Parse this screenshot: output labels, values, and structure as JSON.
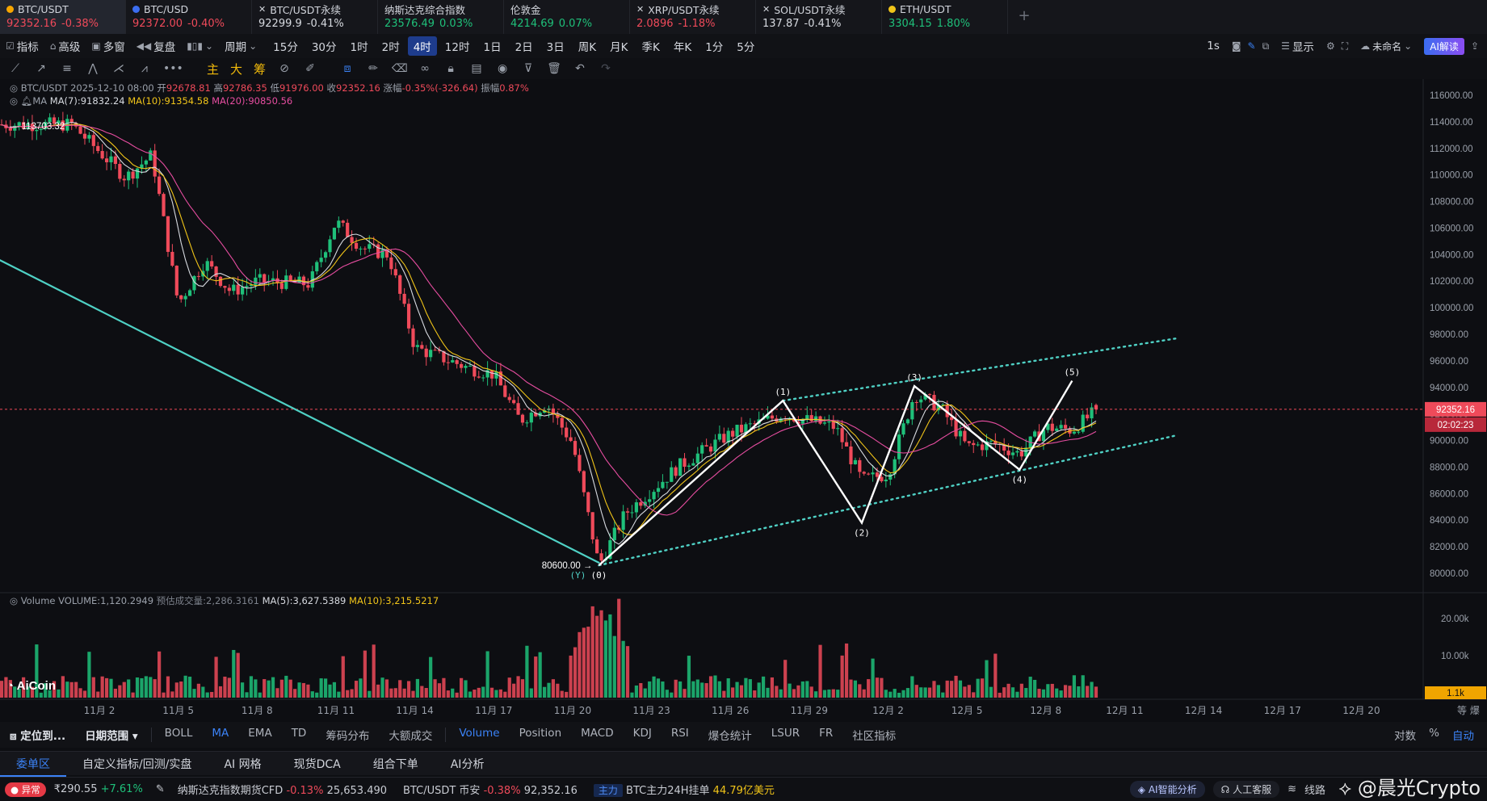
{
  "tickers": [
    {
      "name": "BTC/USDT",
      "price": "92352.16",
      "change": "-0.38%",
      "dir": "down",
      "icon": "btc-coin-icon",
      "dot": "#f7a600",
      "active": true
    },
    {
      "name": "BTC/USD",
      "price": "92372.00",
      "change": "-0.40%",
      "dir": "down",
      "icon": "coinbase-icon",
      "dot": "#3b6df0",
      "active": false
    },
    {
      "name": "BTC/USDT永续",
      "price": "92299.9",
      "change": "-0.41%",
      "dir": "white",
      "icon": "okx-icon",
      "dot": "",
      "active": false
    },
    {
      "name": "纳斯达克综合指数",
      "price": "23576.49",
      "change": "0.03%",
      "dir": "up",
      "icon": "",
      "dot": "",
      "active": false
    },
    {
      "name": "伦敦金",
      "price": "4214.69",
      "change": "0.07%",
      "dir": "up",
      "icon": "",
      "dot": "",
      "active": false
    },
    {
      "name": "XRP/USDT永续",
      "price": "2.0896",
      "change": "-1.18%",
      "dir": "down",
      "icon": "okx-icon",
      "dot": "",
      "active": false
    },
    {
      "name": "SOL/USDT永续",
      "price": "137.87",
      "change": "-0.41%",
      "dir": "white",
      "icon": "okx-icon",
      "dot": "",
      "active": false
    },
    {
      "name": "ETH/USDT",
      "price": "3304.15",
      "change": "1.80%",
      "dir": "up",
      "icon": "eth-coin-icon",
      "dot": "#f0c419",
      "active": false
    }
  ],
  "toolbar": {
    "left": [
      "指标",
      "高级",
      "多窗",
      "复盘"
    ],
    "period_label": "周期",
    "periods": [
      "15分",
      "30分",
      "1时",
      "2时",
      "4时",
      "12时",
      "1日",
      "2日",
      "3日",
      "周K",
      "月K",
      "季K",
      "年K",
      "1分",
      "5分"
    ],
    "selected_period": "4时",
    "right": {
      "interval": "1s",
      "display": "显示",
      "unnamed": "未命名",
      "ai": "AI解读"
    }
  },
  "drawbar": {
    "main_ind": [
      "主",
      "大",
      "筹"
    ]
  },
  "info": {
    "symbol": "BTC/USDT",
    "date": "2025-12-10 08:00",
    "open_label": "开",
    "open": "92678.81",
    "high_label": "高",
    "high": "92786.35",
    "low_label": "低",
    "low": "91976.00",
    "close_label": "收",
    "close": "92352.16",
    "chg_label": "涨幅",
    "chg": "-0.35%(-326.64)",
    "amp_label": "振幅",
    "amp": "0.87%",
    "ma_label": "MA",
    "ma7": "MA(7):91832.24",
    "ma10": "MA(10):91354.58",
    "ma20": "MA(20):90850.56",
    "vol_label": "Volume",
    "vol": "VOLUME:1,120.2949",
    "vol_est_label": "预估成交量:",
    "vol_est": "2,286.3161",
    "vma5": "MA(5):3,627.5389",
    "vma10": "MA(10):3,215.5217"
  },
  "chart_data": {
    "type": "candlestick",
    "interval": "4时",
    "price_axis": {
      "min": 80000,
      "max": 116000,
      "step": 2000,
      "labels": [
        "116000.00",
        "114000.00",
        "112000.00",
        "110000.00",
        "108000.00",
        "106000.00",
        "104000.00",
        "102000.00",
        "100000.00",
        "98000.00",
        "96000.00",
        "94000.00",
        "92000.00",
        "90000.00",
        "88000.00",
        "86000.00",
        "84000.00",
        "82000.00",
        "80000.00"
      ]
    },
    "volume_axis": {
      "labels": [
        "20.00k",
        "10.00k"
      ]
    },
    "x_labels": [
      "11月 2",
      "11月 5",
      "11月 8",
      "11月 11",
      "11月 14",
      "11月 17",
      "11月 20",
      "11月 23",
      "11月 26",
      "11月 29",
      "12月 2",
      "12月 5",
      "12月 8",
      "12月 11",
      "12月 14",
      "12月 17",
      "12月 20"
    ],
    "price_path_start": {
      "label": "11月 1",
      "value": 113800
    },
    "price_path": [
      {
        "x": "11月 1",
        "y": 113703
      },
      {
        "x": "11月 3",
        "y": 109800
      },
      {
        "x": "11月 4",
        "y": 111500
      },
      {
        "x": "11月 5",
        "y": 100300
      },
      {
        "x": "11月 6",
        "y": 103500
      },
      {
        "x": "11月 7",
        "y": 101200
      },
      {
        "x": "11月 8",
        "y": 102000
      },
      {
        "x": "11月 10",
        "y": 101800
      },
      {
        "x": "11月 11",
        "y": 106500
      },
      {
        "x": "11月 12",
        "y": 104500
      },
      {
        "x": "11月 13",
        "y": 104000
      },
      {
        "x": "11月 14",
        "y": 97000
      },
      {
        "x": "11月 16",
        "y": 95500
      },
      {
        "x": "11月 17",
        "y": 95000
      },
      {
        "x": "11月 18",
        "y": 91500
      },
      {
        "x": "11月 19",
        "y": 92800
      },
      {
        "x": "11月 20",
        "y": 89800
      },
      {
        "x": "11月 21",
        "y": 80600
      },
      {
        "x": "11月 22",
        "y": 84500
      },
      {
        "x": "11月 24",
        "y": 88000
      },
      {
        "x": "11月 26",
        "y": 90500
      },
      {
        "x": "11月 28",
        "y": 92000
      },
      {
        "x": "11月 30",
        "y": 91000
      },
      {
        "x": "12月 1",
        "y": 87000
      },
      {
        "x": "12月 2",
        "y": 87500
      },
      {
        "x": "12月 3",
        "y": 93500
      },
      {
        "x": "12月 4",
        "y": 92500
      },
      {
        "x": "12月 5",
        "y": 89500
      },
      {
        "x": "12月 6",
        "y": 89800
      },
      {
        "x": "12月 7",
        "y": 89000
      },
      {
        "x": "12月 8",
        "y": 91000
      },
      {
        "x": "12月 9",
        "y": 90800
      },
      {
        "x": "12月 10",
        "y": 92352
      }
    ],
    "price_labels": {
      "high": "113703.32",
      "low": "80600.00",
      "last": "92352.16",
      "countdown": "02:02:23",
      "vol_last": "1.1k"
    },
    "waves": [
      {
        "label": "(0)",
        "x": "11月 21",
        "y": 80600
      },
      {
        "label": "(1)",
        "x": "11月 28",
        "y": 93000
      },
      {
        "label": "(2)",
        "x": "12月 1",
        "y": 83800
      },
      {
        "label": "(3)",
        "x": "12月 3",
        "y": 94100
      },
      {
        "label": "(4)",
        "x": "12月 7",
        "y": 87800
      },
      {
        "label": "(5)",
        "x": "12月 9",
        "y": 94500
      }
    ],
    "y_label": "(Y)",
    "trendlines": [
      {
        "style": "solid",
        "color": "#4fd1c5",
        "from": {
          "x": "10月 29",
          "y": 103800
        },
        "to": {
          "x": "11月 21",
          "y": 80800
        }
      },
      {
        "style": "dotted",
        "color": "#4fd1c5",
        "from": {
          "x": "11月 28",
          "y": 93000
        },
        "to": {
          "x": "12月 13",
          "y": 97700
        }
      },
      {
        "style": "dotted",
        "color": "#4fd1c5",
        "from": {
          "x": "11月 21",
          "y": 80600
        },
        "to": {
          "x": "12月 13",
          "y": 90400
        }
      }
    ],
    "colors": {
      "up": "#1fc07a",
      "down": "#ef4a5a",
      "ma7": "#d7dae0",
      "ma10": "#f0c419",
      "ma20": "#e64da0",
      "wave": "#ffffff",
      "trend": "#4fd1c5"
    }
  },
  "indicator_tabs": {
    "left": [
      "定位到...",
      "日期范围"
    ],
    "items": [
      "BOLL",
      "MA",
      "EMA",
      "TD",
      "筹码分布",
      "大额成交"
    ],
    "selected_main": "MA",
    "sub": [
      "Volume",
      "Position",
      "MACD",
      "KDJ",
      "RSI",
      "爆仓统计",
      "LSUR",
      "FR",
      "社区指标"
    ],
    "selected_sub": "Volume",
    "right": [
      "对数",
      "%",
      "自动"
    ]
  },
  "axis_corner": [
    "等",
    "爆"
  ],
  "panel_tabs": [
    "委单区",
    "自定义指标/回测/实盘",
    "AI 网格",
    "现货DCA",
    "组合下单",
    "AI分析"
  ],
  "status": {
    "alert": "异常",
    "coin_price": "₹290.55",
    "coin_chg": "+7.61%",
    "nas_name": "纳斯达克指数期货CFD",
    "nas_chg": "-0.13%",
    "nas_val": "25,653.490",
    "btc_name": "BTC/USDT 币安",
    "btc_chg": "-0.38%",
    "btc_val": "92,352.16",
    "zl": "主力",
    "zl_text": "BTC主力24H挂单",
    "zl_val": "44.79亿美元",
    "ai_pill": "AI智能分析",
    "service_pill": "人工客服",
    "line": "线路",
    "watermark": "@晨光Crypto"
  },
  "brand": "AiCoin"
}
